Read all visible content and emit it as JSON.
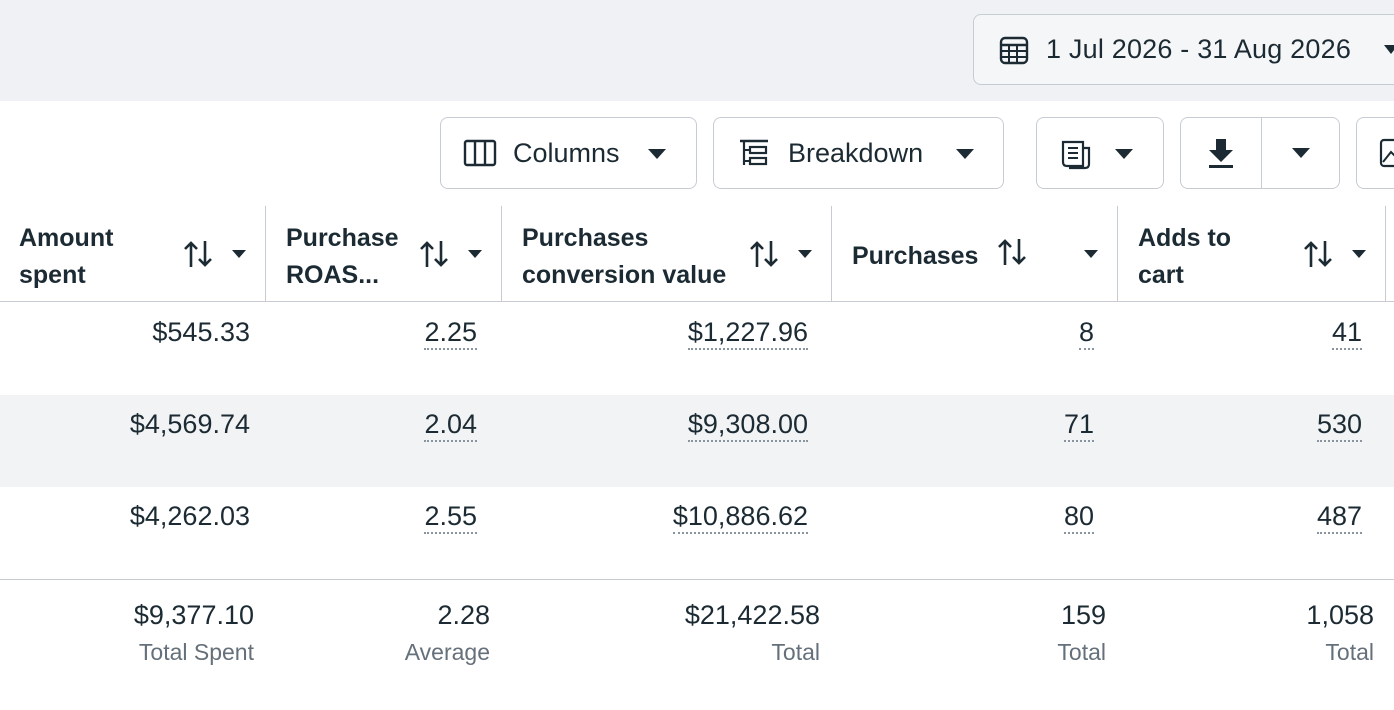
{
  "date_range": {
    "label": "1 Jul 2026 - 31 Aug 2026",
    "icon": "calendar-icon"
  },
  "toolbar": {
    "columns_label": "Columns",
    "breakdown_label": "Breakdown",
    "reports_icon": "reports-icon",
    "export_icon": "download-icon",
    "chart_icon": "chart-icon"
  },
  "table": {
    "headers": [
      {
        "line1": "Amount",
        "line2": "spent"
      },
      {
        "line1": "Purchase",
        "line2": "ROAS..."
      },
      {
        "line1": "Purchases",
        "line2": "conversion value"
      },
      {
        "line1": "Purchases",
        "line2": ""
      },
      {
        "line1": "Adds to",
        "line2": "cart"
      }
    ],
    "rows": [
      {
        "amount_spent": "$545.33",
        "roas": "2.25",
        "conversion_value": "$1,227.96",
        "purchases": "8",
        "adds_to_cart": "41"
      },
      {
        "amount_spent": "$4,569.74",
        "roas": "2.04",
        "conversion_value": "$9,308.00",
        "purchases": "71",
        "adds_to_cart": "530"
      },
      {
        "amount_spent": "$4,262.03",
        "roas": "2.55",
        "conversion_value": "$10,886.62",
        "purchases": "80",
        "adds_to_cart": "487"
      }
    ],
    "totals": {
      "amount_spent": {
        "value": "$9,377.10",
        "label": "Total Spent"
      },
      "roas": {
        "value": "2.28",
        "label": "Average"
      },
      "conversion_value": {
        "value": "$21,422.58",
        "label": "Total"
      },
      "purchases": {
        "value": "159",
        "label": "Total"
      },
      "adds_to_cart": {
        "value": "1,058",
        "label": "Total"
      }
    }
  },
  "colors": {
    "text": "#1c2b33",
    "border": "#c7ccd3",
    "topbar_bg": "#eff1f5",
    "alt_row": "#f2f3f5",
    "muted": "#65707b"
  }
}
